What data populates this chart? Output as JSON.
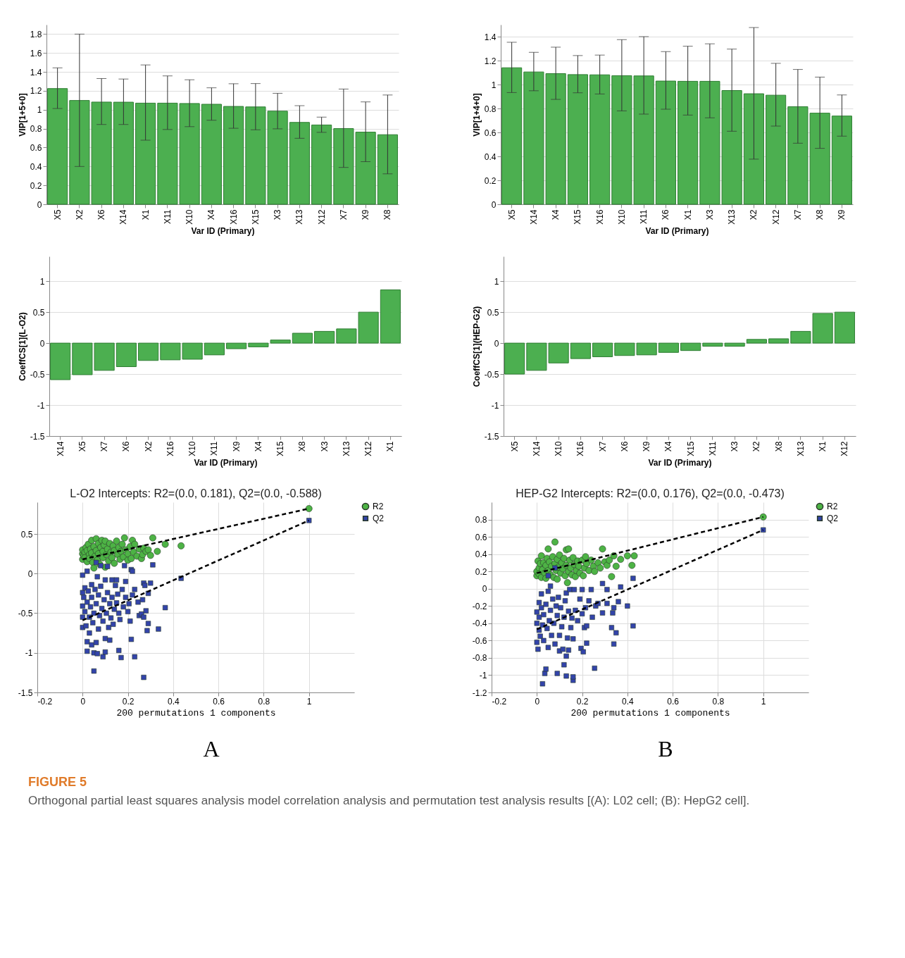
{
  "chart_data": [
    {
      "type": "bar",
      "xlabel": "Var ID (Primary)",
      "ylabel": "VIP[1+5+0]",
      "categories": [
        "X5",
        "X2",
        "X6",
        "X14",
        "X1",
        "X11",
        "X10",
        "X4",
        "X16",
        "X15",
        "X3",
        "X13",
        "X12",
        "X7",
        "X9",
        "X8"
      ],
      "values": [
        1.224,
        1.098,
        1.081,
        1.08,
        1.07,
        1.07,
        1.066,
        1.058,
        1.035,
        1.03,
        0.985,
        0.866,
        0.839,
        0.801,
        0.763,
        0.736
      ],
      "errors": [
        [
          1.013,
          1.443
        ],
        [
          0.4,
          1.8
        ],
        [
          0.844,
          1.33
        ],
        [
          0.844,
          1.325
        ],
        [
          0.678,
          1.474
        ],
        [
          0.791,
          1.358
        ],
        [
          0.821,
          1.317
        ],
        [
          0.889,
          1.232
        ],
        [
          0.804,
          1.275
        ],
        [
          0.788,
          1.277
        ],
        [
          0.798,
          1.174
        ],
        [
          0.698,
          1.043
        ],
        [
          0.761,
          0.922
        ],
        [
          0.39,
          1.219
        ],
        [
          0.451,
          1.083
        ],
        [
          0.322,
          1.156
        ]
      ],
      "color": "#4caf50",
      "ylim": [
        0,
        1.9
      ],
      "yticks": [
        0,
        0.2,
        0.4,
        0.6,
        0.8,
        1,
        1.2,
        1.4,
        1.6,
        1.8
      ],
      "grid": "y"
    },
    {
      "type": "bar",
      "xlabel": "Var ID (Primary)",
      "ylabel": "VIP[1+4+0]",
      "categories": [
        "X5",
        "X14",
        "X4",
        "X15",
        "X16",
        "X10",
        "X11",
        "X6",
        "X1",
        "X3",
        "X13",
        "X2",
        "X12",
        "X7",
        "X8",
        "X9"
      ],
      "values": [
        1.14,
        1.105,
        1.091,
        1.083,
        1.081,
        1.074,
        1.072,
        1.029,
        1.027,
        1.027,
        0.95,
        0.923,
        0.911,
        0.815,
        0.761,
        0.737
      ],
      "errors": [
        [
          0.933,
          1.353
        ],
        [
          0.948,
          1.269
        ],
        [
          0.876,
          1.312
        ],
        [
          0.931,
          1.242
        ],
        [
          0.921,
          1.246
        ],
        [
          0.78,
          1.375
        ],
        [
          0.753,
          1.4
        ],
        [
          0.794,
          1.275
        ],
        [
          0.745,
          1.32
        ],
        [
          0.722,
          1.34
        ],
        [
          0.61,
          1.296
        ],
        [
          0.377,
          1.476
        ],
        [
          0.653,
          1.177
        ],
        [
          0.51,
          1.126
        ],
        [
          0.467,
          1.062
        ],
        [
          0.569,
          0.913
        ]
      ],
      "color": "#4caf50",
      "ylim": [
        0,
        1.5
      ],
      "yticks": [
        0,
        0.2,
        0.4,
        0.6,
        0.8,
        1,
        1.2,
        1.4
      ],
      "grid": "y"
    },
    {
      "type": "bar",
      "xlabel": "Var ID (Primary)",
      "ylabel": "CoeffCS[1](L-O2)",
      "categories": [
        "X14",
        "X5",
        "X7",
        "X6",
        "X2",
        "X16",
        "X10",
        "X11",
        "X9",
        "X4",
        "X15",
        "X8",
        "X3",
        "X13",
        "X12",
        "X1"
      ],
      "values": [
        -0.59,
        -0.51,
        -0.44,
        -0.38,
        -0.28,
        -0.27,
        -0.26,
        -0.19,
        -0.09,
        -0.06,
        0.05,
        0.16,
        0.19,
        0.23,
        0.5,
        0.86
      ],
      "color": "#4caf50",
      "ylim": [
        -1.5,
        1.4
      ],
      "yticks": [
        -1.5,
        -1,
        -0.5,
        0,
        0.5,
        1
      ],
      "grid": "y"
    },
    {
      "type": "bar",
      "xlabel": "Var ID (Primary)",
      "ylabel": "CoeffCS[1](HEP-G2)",
      "categories": [
        "X5",
        "X14",
        "X10",
        "X16",
        "X7",
        "X6",
        "X9",
        "X4",
        "X15",
        "X11",
        "X3",
        "X2",
        "X8",
        "X13",
        "X1",
        "X12"
      ],
      "values": [
        -0.5,
        -0.44,
        -0.32,
        -0.25,
        -0.22,
        -0.2,
        -0.19,
        -0.15,
        -0.12,
        -0.05,
        -0.05,
        0.06,
        0.07,
        0.19,
        0.48,
        0.5
      ],
      "color": "#4caf50",
      "ylim": [
        -1.5,
        1.4
      ],
      "yticks": [
        -1.5,
        -1,
        -0.5,
        0,
        0.5,
        1
      ],
      "grid": "y"
    },
    {
      "type": "scatter",
      "title": "L-O2 Intercepts: R2=(0.0, 0.181), Q2=(0.0, -0.588)",
      "xlabel": "200 permutations 1 components",
      "xlim": [
        -0.2,
        1.2
      ],
      "xticks": [
        -0.2,
        0,
        0.2,
        0.4,
        0.6,
        0.8,
        1
      ],
      "ylim": [
        -1.5,
        0.9
      ],
      "yticks": [
        -1.5,
        -1,
        -0.5,
        0,
        0.5
      ],
      "grid": true,
      "legend": "top right",
      "annotations": [
        "A",
        "FIGURE 5",
        "Orthogonal partial least squares analysis model correlation analysis and permutation test analysis results [(A): L02 cell; (B): HepG2 cell]."
      ],
      "series": [
        {
          "name": "R2",
          "color": "#4db345",
          "marker": "circle",
          "x": [
            0,
            0,
            0,
            0.005,
            0.01,
            0.01,
            0.015,
            0.02,
            0.02,
            0.025,
            0.03,
            0.03,
            0.035,
            0.04,
            0.04,
            0.045,
            0.05,
            0.05,
            0.055,
            0.06,
            0.06,
            0.065,
            0.07,
            0.07,
            0.075,
            0.08,
            0.085,
            0.09,
            0.09,
            0.095,
            0.1,
            0.1,
            0.105,
            0.11,
            0.115,
            0.12,
            0.125,
            0.13,
            0.135,
            0.14,
            0.14,
            0.15,
            0.155,
            0.16,
            0.165,
            0.17,
            0.175,
            0.18,
            0.185,
            0.19,
            0.2,
            0.2,
            0.21,
            0.215,
            0.22,
            0.225,
            0.23,
            0.24,
            0.25,
            0.26,
            0.265,
            0.27,
            0.28,
            0.29,
            0.3,
            0.31,
            0.33,
            0.365,
            0.435,
            1
          ],
          "values": [
            0.18,
            0.25,
            0.3,
            0.22,
            0.27,
            0.2,
            0.33,
            0.15,
            0.29,
            0.37,
            0.24,
            0.19,
            0.31,
            0.42,
            0.26,
            0.14,
            0.07,
            0.34,
            0.22,
            0.44,
            0.29,
            0.17,
            0.38,
            0.25,
            0.12,
            0.33,
            0.42,
            0.2,
            0.28,
            0.36,
            0.08,
            0.41,
            0.24,
            0.31,
            0.16,
            0.38,
            0.27,
            0.2,
            0.35,
            0.13,
            0.29,
            0.41,
            0.24,
            0.33,
            0.18,
            0.28,
            0.37,
            0.21,
            0.45,
            0.3,
            0.17,
            0.25,
            0.34,
            0.19,
            0.42,
            0.27,
            0.37,
            0.22,
            0.31,
            0.19,
            0.24,
            0.32,
            0.28,
            0.3,
            0.23,
            0.45,
            0.28,
            0.37,
            0.35,
            0.82
          ]
        },
        {
          "name": "Q2",
          "color": "#3344aa",
          "marker": "square",
          "x": [
            0,
            0,
            0,
            0,
            0,
            0.005,
            0.01,
            0.01,
            0.015,
            0.02,
            0.02,
            0.02,
            0.02,
            0.025,
            0.03,
            0.03,
            0.035,
            0.04,
            0.04,
            0.04,
            0.045,
            0.05,
            0.05,
            0.05,
            0.055,
            0.06,
            0.06,
            0.06,
            0.065,
            0.065,
            0.07,
            0.07,
            0.075,
            0.08,
            0.08,
            0.085,
            0.09,
            0.09,
            0.095,
            0.1,
            0.1,
            0.1,
            0.105,
            0.11,
            0.11,
            0.115,
            0.12,
            0.12,
            0.125,
            0.13,
            0.13,
            0.135,
            0.14,
            0.145,
            0.15,
            0.15,
            0.155,
            0.16,
            0.16,
            0.165,
            0.17,
            0.175,
            0.18,
            0.185,
            0.19,
            0.19,
            0.2,
            0.205,
            0.21,
            0.215,
            0.215,
            0.22,
            0.22,
            0.23,
            0.23,
            0.245,
            0.25,
            0.26,
            0.265,
            0.27,
            0.27,
            0.27,
            0.275,
            0.28,
            0.285,
            0.29,
            0.29,
            0.3,
            0.31,
            0.335,
            0.365,
            0.435,
            1
          ],
          "values": [
            -0.02,
            -0.24,
            -0.41,
            -0.55,
            -0.68,
            -0.3,
            -0.18,
            -0.48,
            -0.66,
            0.03,
            -0.36,
            -0.86,
            -0.98,
            -0.22,
            -0.55,
            -0.75,
            -0.42,
            -0.14,
            -0.3,
            -0.9,
            -0.62,
            -1.0,
            -1.23,
            -0.5,
            -0.2,
            0.14,
            -0.38,
            -0.87,
            -0.04,
            -1.01,
            -0.27,
            -0.7,
            -0.53,
            0.1,
            -0.16,
            -0.44,
            -0.6,
            -1.05,
            -0.33,
            -0.08,
            -0.99,
            -0.82,
            -0.5,
            0.09,
            -0.24,
            -0.68,
            -0.38,
            -0.84,
            -0.56,
            -0.08,
            -0.3,
            -0.64,
            -0.45,
            -0.15,
            -0.08,
            -0.37,
            -0.26,
            -0.97,
            -0.5,
            -0.58,
            -1.06,
            -0.2,
            -0.42,
            0.1,
            -0.1,
            -0.3,
            -0.48,
            -0.38,
            -0.6,
            0.05,
            -0.83,
            0.03,
            -0.27,
            -0.2,
            -1.05,
            -0.36,
            -0.53,
            -0.51,
            -0.33,
            -0.55,
            -0.12,
            -1.31,
            -0.15,
            -0.47,
            -0.72,
            -0.63,
            -0.25,
            -0.12,
            0.11,
            -0.7,
            -0.43,
            -0.06,
            0.67
          ]
        },
        {
          "type": "line",
          "color": "#000000",
          "line_style": "dashed",
          "x": [
            0,
            1
          ],
          "values": [
            0.18,
            0.82
          ]
        },
        {
          "type": "line",
          "color": "#000000",
          "line_style": "dashed",
          "x": [
            0,
            1
          ],
          "values": [
            -0.59,
            0.67
          ]
        }
      ]
    },
    {
      "type": "scatter",
      "title": "HEP-G2 Intercepts: R2=(0.0, 0.176), Q2=(0.0, -0.473)",
      "xlabel": "200 permutations 1 components",
      "xlim": [
        -0.2,
        1.2
      ],
      "xticks": [
        -0.2,
        0,
        0.2,
        0.4,
        0.6,
        0.8,
        1
      ],
      "ylim": [
        -1.2,
        1.0
      ],
      "yticks": [
        -1.2,
        -1,
        -0.8,
        -0.6,
        -0.4,
        -0.2,
        0,
        0.2,
        0.4,
        0.6,
        0.8
      ],
      "grid": true,
      "legend": "top right",
      "annotations": [
        "B"
      ],
      "series": [
        {
          "name": "R2",
          "color": "#4db345",
          "marker": "circle",
          "x": [
            0,
            0,
            0.005,
            0.01,
            0.01,
            0.015,
            0.02,
            0.02,
            0.025,
            0.03,
            0.035,
            0.04,
            0.04,
            0.045,
            0.05,
            0.05,
            0.055,
            0.06,
            0.065,
            0.07,
            0.075,
            0.08,
            0.08,
            0.085,
            0.09,
            0.09,
            0.095,
            0.1,
            0.105,
            0.11,
            0.115,
            0.12,
            0.125,
            0.13,
            0.13,
            0.135,
            0.14,
            0.14,
            0.145,
            0.15,
            0.155,
            0.16,
            0.165,
            0.17,
            0.175,
            0.18,
            0.185,
            0.19,
            0.2,
            0.205,
            0.21,
            0.215,
            0.22,
            0.23,
            0.24,
            0.25,
            0.255,
            0.27,
            0.28,
            0.29,
            0.3,
            0.31,
            0.32,
            0.33,
            0.34,
            0.35,
            0.37,
            0.4,
            0.42,
            0.43,
            1
          ],
          "values": [
            0.15,
            0.2,
            0.32,
            0.24,
            0.17,
            0.29,
            0.13,
            0.38,
            0.22,
            0.3,
            0.18,
            0.27,
            0.12,
            0.35,
            0.46,
            0.21,
            0.31,
            0.16,
            0.26,
            0.37,
            0.13,
            0.54,
            0.29,
            0.21,
            0.11,
            0.34,
            0.25,
            0.39,
            0.18,
            0.3,
            0.23,
            0.35,
            0.15,
            0.45,
            0.27,
            0.07,
            0.46,
            0.2,
            0.33,
            0.24,
            0.16,
            0.36,
            0.28,
            0.14,
            0.21,
            0.32,
            0.26,
            0.18,
            0.33,
            0.15,
            0.24,
            0.37,
            0.29,
            0.21,
            0.33,
            0.26,
            0.2,
            0.3,
            0.24,
            0.46,
            0.31,
            0.27,
            0.33,
            0.14,
            0.38,
            0.26,
            0.34,
            0.38,
            0.27,
            0.38,
            0.83
          ]
        },
        {
          "name": "Q2",
          "color": "#3344aa",
          "marker": "square",
          "x": [
            0,
            0,
            0,
            0.005,
            0.01,
            0.01,
            0.01,
            0.015,
            0.02,
            0.02,
            0.025,
            0.025,
            0.03,
            0.03,
            0.035,
            0.04,
            0.04,
            0.045,
            0.05,
            0.05,
            0.05,
            0.055,
            0.06,
            0.06,
            0.065,
            0.07,
            0.075,
            0.08,
            0.08,
            0.085,
            0.09,
            0.09,
            0.095,
            0.1,
            0.1,
            0.105,
            0.11,
            0.115,
            0.12,
            0.12,
            0.125,
            0.13,
            0.13,
            0.13,
            0.135,
            0.14,
            0.14,
            0.145,
            0.15,
            0.155,
            0.16,
            0.16,
            0.16,
            0.165,
            0.17,
            0.18,
            0.19,
            0.195,
            0.2,
            0.2,
            0.205,
            0.21,
            0.215,
            0.22,
            0.22,
            0.23,
            0.24,
            0.245,
            0.255,
            0.26,
            0.27,
            0.29,
            0.29,
            0.31,
            0.31,
            0.33,
            0.335,
            0.34,
            0.34,
            0.35,
            0.36,
            0.37,
            0.4,
            0.425,
            0.425,
            1
          ],
          "values": [
            -0.27,
            -0.4,
            -0.62,
            -0.7,
            -0.16,
            -0.33,
            -0.48,
            -0.55,
            -0.06,
            -0.22,
            -0.42,
            -1.1,
            -0.3,
            -0.6,
            -0.98,
            -0.93,
            -0.18,
            -0.46,
            0.15,
            -0.03,
            -0.68,
            -0.37,
            0.03,
            -0.25,
            -0.54,
            -0.12,
            -0.4,
            0.24,
            -0.64,
            -0.2,
            -0.31,
            -0.98,
            -0.1,
            -0.54,
            -0.72,
            -0.22,
            -0.44,
            -0.7,
            -0.88,
            -0.33,
            -0.14,
            -1.01,
            -0.78,
            -0.05,
            -0.57,
            -0.26,
            -0.71,
            -0.01,
            -0.45,
            -0.34,
            -1.06,
            -1.02,
            -0.58,
            -0.01,
            -0.25,
            -0.37,
            -0.12,
            -0.69,
            -0.01,
            -0.29,
            -0.73,
            -0.45,
            -0.22,
            -0.43,
            -0.63,
            -0.14,
            -0.01,
            -0.33,
            -0.92,
            -0.2,
            -0.17,
            -0.28,
            0.06,
            -0.01,
            -0.17,
            -0.45,
            -0.28,
            -0.22,
            -0.64,
            -0.51,
            -0.15,
            0.02,
            -0.2,
            0.12,
            -0.43,
            0.68
          ]
        },
        {
          "type": "line",
          "color": "#000000",
          "line_style": "dashed",
          "x": [
            0,
            1
          ],
          "values": [
            0.18,
            0.83
          ]
        },
        {
          "type": "line",
          "color": "#000000",
          "line_style": "dashed",
          "x": [
            0,
            1
          ],
          "values": [
            -0.47,
            0.68
          ]
        }
      ]
    }
  ]
}
